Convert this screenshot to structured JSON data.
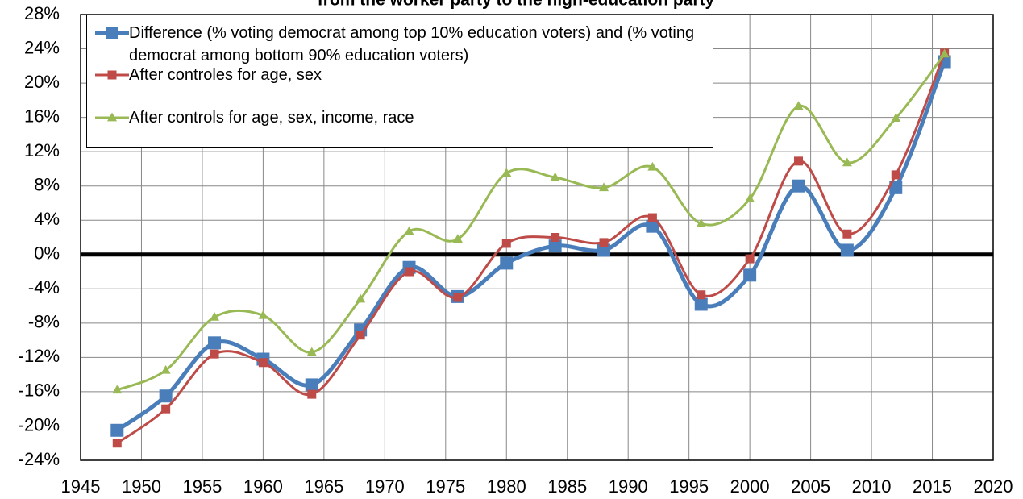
{
  "chart_data": {
    "type": "line",
    "title": "from the worker party to the high-education party",
    "x": [
      1948,
      1952,
      1956,
      1960,
      1964,
      1968,
      1972,
      1976,
      1980,
      1984,
      1988,
      1992,
      1996,
      2000,
      2004,
      2008,
      2012,
      2016
    ],
    "series": [
      {
        "name": "Difference (% voting democrat among top 10% education voters) and (% voting democrat among bottom 90% education voters)",
        "color": "#4a7ebb",
        "marker": "square",
        "values": [
          -20.5,
          -16.5,
          -10.3,
          -12.2,
          -15.2,
          -8.8,
          -1.5,
          -4.9,
          -1.0,
          1.0,
          0.5,
          3.3,
          -5.8,
          -2.4,
          8.0,
          0.5,
          7.8,
          22.5
        ]
      },
      {
        "name": "After controles for age, sex",
        "color": "#be4b48",
        "marker": "square",
        "values": [
          -22.0,
          -18.0,
          -11.6,
          -12.6,
          -16.3,
          -9.4,
          -2.0,
          -5.0,
          1.3,
          2.0,
          1.4,
          4.3,
          -4.7,
          -0.5,
          10.9,
          2.4,
          9.3,
          23.5
        ]
      },
      {
        "name": "After controls for age, sex, income, race",
        "color": "#98b954",
        "marker": "triangle",
        "values": [
          -15.8,
          -13.5,
          -7.3,
          -7.1,
          -11.4,
          -5.2,
          2.7,
          1.8,
          9.5,
          9.0,
          7.8,
          10.2,
          3.6,
          6.5,
          17.3,
          10.7,
          15.9,
          23.4
        ]
      }
    ],
    "xlim": [
      1945,
      2020
    ],
    "xticks": [
      1945,
      1950,
      1955,
      1960,
      1965,
      1970,
      1975,
      1980,
      1985,
      1990,
      1995,
      2000,
      2005,
      2010,
      2015,
      2020
    ],
    "ylim": [
      -24,
      28
    ],
    "yticks": [
      {
        "value": -24,
        "label": "-24%"
      },
      {
        "value": -20,
        "label": "-20%"
      },
      {
        "value": -16,
        "label": "-16%"
      },
      {
        "value": -12,
        "label": "-12%"
      },
      {
        "value": -8,
        "label": "-8%"
      },
      {
        "value": -4,
        "label": "-4%"
      },
      {
        "value": 0,
        "label": "0%"
      },
      {
        "value": 4,
        "label": "4%"
      },
      {
        "value": 8,
        "label": "8%"
      },
      {
        "value": 12,
        "label": "12%"
      },
      {
        "value": 16,
        "label": "16%"
      },
      {
        "value": 20,
        "label": "20%"
      },
      {
        "value": 24,
        "label": "24%"
      },
      {
        "value": 28,
        "label": "28%"
      }
    ],
    "grid": true,
    "zero_line": true,
    "smooth": true,
    "legend": "top-left"
  }
}
